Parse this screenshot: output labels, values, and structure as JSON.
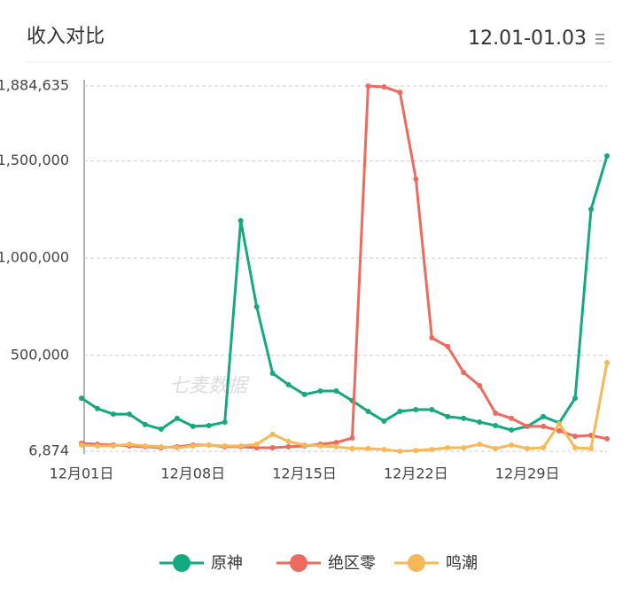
{
  "chart_data": {
    "type": "line",
    "title": "收入对比",
    "date_range": "12.01-01.03",
    "watermark": "七麦数据",
    "categories": [
      "12月01日",
      null,
      null,
      null,
      null,
      null,
      null,
      "12月08日",
      null,
      null,
      null,
      null,
      null,
      null,
      "12月15日",
      null,
      null,
      null,
      null,
      null,
      null,
      "12月22日",
      null,
      null,
      null,
      null,
      null,
      null,
      "12月29日",
      null,
      null,
      null,
      null,
      null
    ],
    "ylim": [
      6874,
      1884635
    ],
    "yticks": [
      {
        "value": 6874,
        "label": "6,874"
      },
      {
        "value": 500000,
        "label": "500,000"
      },
      {
        "value": 1000000,
        "label": "1,000,000"
      },
      {
        "value": 1500000,
        "label": "1,500,000"
      },
      {
        "value": 1884635,
        "label": "1,884,635"
      }
    ],
    "grid": true,
    "series": [
      {
        "name": "原神",
        "color": "#14a97f",
        "values": [
          280000,
          226000,
          198000,
          198000,
          144000,
          121000,
          176000,
          135000,
          139000,
          157000,
          1192000,
          750000,
          408000,
          349000,
          299000,
          317000,
          317000,
          267000,
          212000,
          162000,
          212000,
          221000,
          221000,
          185000,
          176000,
          157000,
          139000,
          116000,
          135000,
          185000,
          153000,
          280000,
          1251000,
          1525000
        ]
      },
      {
        "name": "绝区零",
        "color": "#ec6a5e",
        "values": [
          48000,
          43000,
          39000,
          34000,
          30000,
          25000,
          30000,
          39000,
          39000,
          30000,
          30000,
          25000,
          25000,
          30000,
          34000,
          43000,
          52000,
          75000,
          1884635,
          1880000,
          1852000,
          1406000,
          590000,
          545000,
          412000,
          344000,
          203000,
          176000,
          135000,
          135000,
          112000,
          84000,
          89000,
          71000
        ]
      },
      {
        "name": "鸣潮",
        "color": "#f7b955",
        "values": [
          39000,
          34000,
          34000,
          43000,
          34000,
          30000,
          25000,
          34000,
          39000,
          34000,
          34000,
          43000,
          94000,
          57000,
          39000,
          34000,
          30000,
          21000,
          21000,
          16000,
          7000,
          11000,
          16000,
          25000,
          25000,
          43000,
          21000,
          39000,
          21000,
          25000,
          148000,
          25000,
          21000,
          463000
        ]
      }
    ]
  }
}
